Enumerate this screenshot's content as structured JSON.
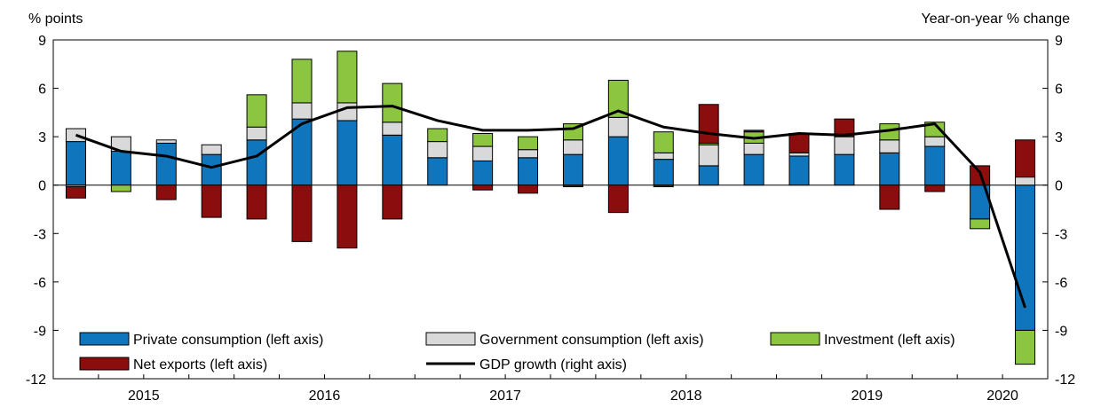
{
  "chart_data": {
    "type": "bar",
    "stacked": true,
    "left_axis_label": "% points",
    "right_axis_label": "Year-on-year % change",
    "ylim": [
      -12,
      9
    ],
    "yticks": [
      9,
      6,
      3,
      0,
      -3,
      -6,
      -9,
      -12
    ],
    "ytick_labels": [
      "9",
      "6",
      "3",
      "0",
      "-3",
      "-6",
      "-9",
      "-12"
    ],
    "grid": false,
    "x_year_labels": [
      "2015",
      "2016",
      "2017",
      "2018",
      "2019",
      "2020"
    ],
    "quarters": [
      "2015Q1",
      "2015Q2",
      "2015Q3",
      "2015Q4",
      "2016Q1",
      "2016Q2",
      "2016Q3",
      "2016Q4",
      "2017Q1",
      "2017Q2",
      "2017Q3",
      "2017Q4",
      "2018Q1",
      "2018Q2",
      "2018Q3",
      "2018Q4",
      "2019Q1",
      "2019Q2",
      "2019Q3",
      "2019Q4",
      "2020Q1",
      "2020Q2"
    ],
    "series": [
      {
        "name": "Private consumption (left axis)",
        "kind": "bar",
        "color": "#0f75bc",
        "values": [
          2.7,
          2.1,
          2.6,
          1.9,
          2.8,
          4.1,
          4.0,
          3.1,
          1.7,
          1.5,
          1.7,
          1.9,
          3.0,
          1.6,
          1.2,
          1.9,
          1.8,
          1.9,
          2.0,
          2.4,
          -2.1,
          -9.0
        ]
      },
      {
        "name": "Government consumption (left axis)",
        "kind": "bar",
        "color": "#d9d9d9",
        "values": [
          0.8,
          0.9,
          0.2,
          0.6,
          0.8,
          1.0,
          1.1,
          0.8,
          1.0,
          0.9,
          0.5,
          0.9,
          1.2,
          0.4,
          1.3,
          0.7,
          0.2,
          1.1,
          0.8,
          0.6,
          0.0,
          0.5
        ]
      },
      {
        "name": "Investment (left axis)",
        "kind": "bar",
        "color": "#8cc640",
        "values": [
          -0.1,
          -0.4,
          0.0,
          0.0,
          2.0,
          2.7,
          3.2,
          2.4,
          0.8,
          0.8,
          0.8,
          1.0,
          2.3,
          1.3,
          0.1,
          0.7,
          0.0,
          0.0,
          1.0,
          0.9,
          -0.6,
          -2.1
        ]
      },
      {
        "name": "Net exports (left axis)",
        "kind": "bar",
        "color": "#8b0d0d",
        "values": [
          -0.7,
          0.0,
          -0.9,
          -2.0,
          -2.1,
          -3.5,
          -3.9,
          -2.1,
          0.0,
          -0.3,
          -0.5,
          -0.1,
          -1.7,
          -0.1,
          2.4,
          0.1,
          1.2,
          1.1,
          -1.5,
          -0.4,
          1.2,
          2.3
        ]
      },
      {
        "name": "GDP growth (right axis)",
        "kind": "line",
        "color": "#000000",
        "values": [
          3.1,
          2.1,
          1.8,
          1.1,
          1.8,
          3.8,
          4.8,
          4.9,
          4.0,
          3.4,
          3.4,
          3.5,
          4.6,
          3.6,
          3.2,
          2.9,
          3.2,
          3.1,
          3.4,
          3.8,
          0.8,
          -7.6
        ]
      }
    ],
    "legend": [
      {
        "label": "Private consumption (left axis)",
        "swatch": "bar",
        "color": "#0f75bc"
      },
      {
        "label": "Government consumption (left axis)",
        "swatch": "bar",
        "color": "#d9d9d9"
      },
      {
        "label": "Investment (left axis)",
        "swatch": "bar",
        "color": "#8cc640"
      },
      {
        "label": "Net exports (left axis)",
        "swatch": "bar",
        "color": "#8b0d0d"
      },
      {
        "label": "GDP growth (right axis)",
        "swatch": "line",
        "color": "#000000"
      }
    ]
  }
}
